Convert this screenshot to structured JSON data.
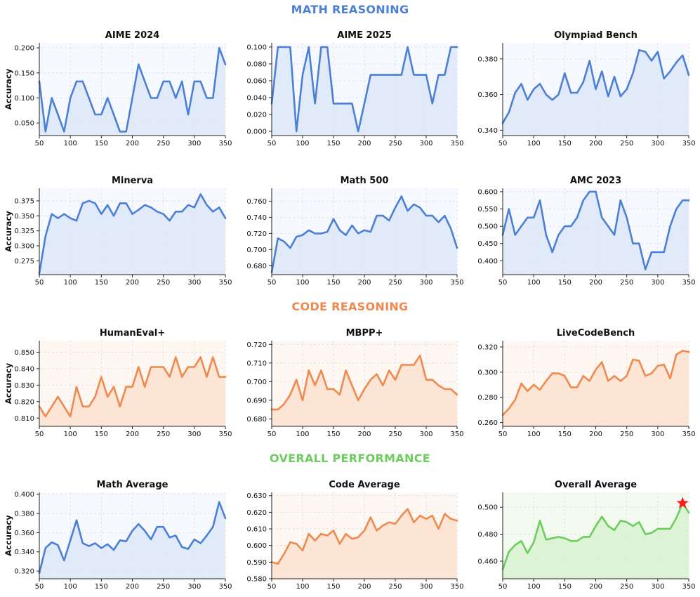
{
  "colors": {
    "math": "#4c7fd6",
    "code": "#ef8a4f",
    "overall": "#6dcc5e",
    "star": "#ff1a1a"
  },
  "sections": {
    "math": "MATH REASONING",
    "code": "CODE REASONING",
    "overall": "OVERALL PERFORMANCE"
  },
  "chart_data": [
    {
      "type": "line",
      "title": "AIME 2024",
      "ylabel": "Accuracy",
      "xlabel": "",
      "group": "math",
      "x": [
        50,
        60,
        70,
        80,
        90,
        100,
        110,
        120,
        130,
        140,
        150,
        160,
        170,
        180,
        190,
        200,
        210,
        220,
        230,
        240,
        250,
        260,
        270,
        280,
        290,
        300,
        310,
        320,
        330,
        340,
        350
      ],
      "y": [
        0.133,
        0.033,
        0.1,
        0.067,
        0.033,
        0.1,
        0.133,
        0.133,
        0.1,
        0.067,
        0.067,
        0.1,
        0.067,
        0.033,
        0.033,
        0.1,
        0.167,
        0.133,
        0.1,
        0.1,
        0.133,
        0.133,
        0.1,
        0.133,
        0.067,
        0.133,
        0.133,
        0.1,
        0.1,
        0.2,
        0.167
      ],
      "xlim": [
        50,
        350
      ],
      "ylim": [
        0.025,
        0.21
      ],
      "xticks": [
        50,
        100,
        150,
        200,
        250,
        300,
        350
      ],
      "yticks": [
        0.05,
        0.1,
        0.15,
        0.2
      ],
      "yticklabels": [
        "0.050",
        "0.100",
        "0.150",
        "0.200"
      ]
    },
    {
      "type": "line",
      "title": "AIME 2025",
      "ylabel": "",
      "xlabel": "",
      "group": "math",
      "x": [
        50,
        60,
        70,
        80,
        90,
        100,
        110,
        120,
        130,
        140,
        150,
        160,
        170,
        180,
        190,
        200,
        210,
        220,
        230,
        240,
        250,
        260,
        270,
        280,
        290,
        300,
        310,
        320,
        330,
        340,
        350
      ],
      "y": [
        0.033,
        0.1,
        0.1,
        0.1,
        0.0,
        0.067,
        0.1,
        0.033,
        0.1,
        0.1,
        0.033,
        0.033,
        0.033,
        0.033,
        0.0,
        0.033,
        0.067,
        0.067,
        0.067,
        0.067,
        0.067,
        0.067,
        0.1,
        0.067,
        0.067,
        0.067,
        0.033,
        0.067,
        0.067,
        0.1,
        0.1
      ],
      "xlim": [
        50,
        350
      ],
      "ylim": [
        -0.005,
        0.105
      ],
      "xticks": [
        50,
        100,
        150,
        200,
        250,
        300,
        350
      ],
      "yticks": [
        0,
        0.02,
        0.04,
        0.06,
        0.08,
        0.1
      ],
      "yticklabels": [
        "0.000",
        "0.020",
        "0.040",
        "0.060",
        "0.080",
        "0.100"
      ]
    },
    {
      "type": "line",
      "title": "Olympiad Bench",
      "ylabel": "",
      "xlabel": "",
      "group": "math",
      "x": [
        50,
        60,
        70,
        80,
        90,
        100,
        110,
        120,
        130,
        140,
        150,
        160,
        170,
        180,
        190,
        200,
        210,
        220,
        230,
        240,
        250,
        260,
        270,
        280,
        290,
        300,
        310,
        320,
        330,
        340,
        350
      ],
      "y": [
        0.344,
        0.35,
        0.361,
        0.366,
        0.357,
        0.363,
        0.366,
        0.36,
        0.357,
        0.36,
        0.372,
        0.361,
        0.361,
        0.367,
        0.379,
        0.363,
        0.373,
        0.359,
        0.37,
        0.359,
        0.363,
        0.372,
        0.385,
        0.384,
        0.379,
        0.384,
        0.369,
        0.373,
        0.378,
        0.382,
        0.371
      ],
      "xlim": [
        50,
        350
      ],
      "ylim": [
        0.337,
        0.389
      ],
      "xticks": [
        50,
        100,
        150,
        200,
        250,
        300,
        350
      ],
      "yticks": [
        0.34,
        0.36,
        0.38
      ],
      "yticklabels": [
        "0.340",
        "0.360",
        "0.380"
      ]
    },
    {
      "type": "line",
      "title": "Minerva",
      "ylabel": "Accuracy",
      "xlabel": "",
      "group": "math",
      "x": [
        50,
        60,
        70,
        80,
        90,
        100,
        110,
        120,
        130,
        140,
        150,
        160,
        170,
        180,
        190,
        200,
        210,
        220,
        230,
        240,
        250,
        260,
        270,
        280,
        290,
        300,
        310,
        320,
        330,
        340,
        350
      ],
      "y": [
        0.254,
        0.316,
        0.353,
        0.346,
        0.353,
        0.346,
        0.342,
        0.371,
        0.375,
        0.371,
        0.353,
        0.368,
        0.35,
        0.371,
        0.371,
        0.353,
        0.36,
        0.368,
        0.364,
        0.357,
        0.353,
        0.342,
        0.357,
        0.357,
        0.368,
        0.364,
        0.386,
        0.368,
        0.357,
        0.364,
        0.346
      ],
      "xlim": [
        50,
        350
      ],
      "ylim": [
        0.252,
        0.396
      ],
      "xticks": [
        50,
        100,
        150,
        200,
        250,
        300,
        350
      ],
      "yticks": [
        0.275,
        0.3,
        0.325,
        0.35,
        0.375
      ],
      "yticklabels": [
        "0.275",
        "0.300",
        "0.325",
        "0.350",
        "0.375"
      ]
    },
    {
      "type": "line",
      "title": "Math 500",
      "ylabel": "",
      "xlabel": "",
      "group": "math",
      "x": [
        50,
        60,
        70,
        80,
        90,
        100,
        110,
        120,
        130,
        140,
        150,
        160,
        170,
        180,
        190,
        200,
        210,
        220,
        230,
        240,
        250,
        260,
        270,
        280,
        290,
        300,
        310,
        320,
        330,
        340,
        350
      ],
      "y": [
        0.672,
        0.714,
        0.71,
        0.702,
        0.716,
        0.718,
        0.724,
        0.72,
        0.72,
        0.722,
        0.738,
        0.724,
        0.718,
        0.73,
        0.72,
        0.724,
        0.722,
        0.742,
        0.742,
        0.736,
        0.752,
        0.766,
        0.748,
        0.756,
        0.752,
        0.742,
        0.742,
        0.734,
        0.742,
        0.726,
        0.702
      ],
      "xlim": [
        50,
        350
      ],
      "ylim": [
        0.669,
        0.776
      ],
      "xticks": [
        50,
        100,
        150,
        200,
        250,
        300,
        350
      ],
      "yticks": [
        0.68,
        0.7,
        0.72,
        0.74,
        0.76
      ],
      "yticklabels": [
        "0.680",
        "0.700",
        "0.720",
        "0.740",
        "0.760"
      ]
    },
    {
      "type": "line",
      "title": "AMC 2023",
      "ylabel": "",
      "xlabel": "",
      "group": "math",
      "x": [
        50,
        60,
        70,
        80,
        90,
        100,
        110,
        120,
        130,
        140,
        150,
        160,
        170,
        180,
        190,
        200,
        210,
        220,
        230,
        240,
        250,
        260,
        270,
        280,
        290,
        300,
        310,
        320,
        330,
        340,
        350
      ],
      "y": [
        0.475,
        0.55,
        0.475,
        0.5,
        0.525,
        0.525,
        0.575,
        0.475,
        0.425,
        0.475,
        0.5,
        0.5,
        0.525,
        0.575,
        0.6,
        0.6,
        0.525,
        0.5,
        0.475,
        0.575,
        0.525,
        0.45,
        0.45,
        0.375,
        0.425,
        0.425,
        0.425,
        0.5,
        0.55,
        0.575,
        0.575
      ],
      "xlim": [
        50,
        350
      ],
      "ylim": [
        0.36,
        0.61
      ],
      "xticks": [
        50,
        100,
        150,
        200,
        250,
        300,
        350
      ],
      "yticks": [
        0.4,
        0.45,
        0.5,
        0.55,
        0.6
      ],
      "yticklabels": [
        "0.400",
        "0.450",
        "0.500",
        "0.550",
        "0.600"
      ]
    },
    {
      "type": "line",
      "title": "HumanEval+",
      "ylabel": "Accuracy",
      "xlabel": "",
      "group": "code",
      "x": [
        50,
        60,
        70,
        80,
        90,
        100,
        110,
        120,
        130,
        140,
        150,
        160,
        170,
        180,
        190,
        200,
        210,
        220,
        230,
        240,
        250,
        260,
        270,
        280,
        290,
        300,
        310,
        320,
        330,
        340,
        350
      ],
      "y": [
        0.817,
        0.811,
        0.817,
        0.823,
        0.817,
        0.811,
        0.829,
        0.817,
        0.817,
        0.823,
        0.835,
        0.823,
        0.829,
        0.817,
        0.829,
        0.829,
        0.841,
        0.829,
        0.841,
        0.841,
        0.841,
        0.835,
        0.847,
        0.835,
        0.841,
        0.841,
        0.847,
        0.835,
        0.847,
        0.835,
        0.835
      ],
      "xlim": [
        50,
        350
      ],
      "ylim": [
        0.805,
        0.857
      ],
      "xticks": [
        50,
        100,
        150,
        200,
        250,
        300,
        350
      ],
      "yticks": [
        0.81,
        0.82,
        0.83,
        0.84,
        0.85
      ],
      "yticklabels": [
        "0.810",
        "0.820",
        "0.830",
        "0.840",
        "0.850"
      ]
    },
    {
      "type": "line",
      "title": "MBPP+",
      "ylabel": "",
      "xlabel": "",
      "group": "code",
      "x": [
        50,
        60,
        70,
        80,
        90,
        100,
        110,
        120,
        130,
        140,
        150,
        160,
        170,
        180,
        190,
        200,
        210,
        220,
        230,
        240,
        250,
        260,
        270,
        280,
        290,
        300,
        310,
        320,
        330,
        340,
        350
      ],
      "y": [
        0.685,
        0.685,
        0.688,
        0.693,
        0.701,
        0.69,
        0.706,
        0.698,
        0.706,
        0.696,
        0.696,
        0.693,
        0.706,
        0.698,
        0.69,
        0.696,
        0.701,
        0.704,
        0.698,
        0.706,
        0.701,
        0.709,
        0.709,
        0.709,
        0.714,
        0.701,
        0.701,
        0.698,
        0.696,
        0.696,
        0.693
      ],
      "xlim": [
        50,
        350
      ],
      "ylim": [
        0.676,
        0.722
      ],
      "xticks": [
        50,
        100,
        150,
        200,
        250,
        300,
        350
      ],
      "yticks": [
        0.68,
        0.69,
        0.7,
        0.71,
        0.72
      ],
      "yticklabels": [
        "0.680",
        "0.690",
        "0.700",
        "0.710",
        "0.720"
      ]
    },
    {
      "type": "line",
      "title": "LiveCodeBench",
      "ylabel": "",
      "xlabel": "",
      "group": "code",
      "x": [
        50,
        60,
        70,
        80,
        90,
        100,
        110,
        120,
        130,
        140,
        150,
        160,
        170,
        180,
        190,
        200,
        210,
        220,
        230,
        240,
        250,
        260,
        270,
        280,
        290,
        300,
        310,
        320,
        330,
        340,
        350
      ],
      "y": [
        0.266,
        0.271,
        0.278,
        0.291,
        0.285,
        0.29,
        0.286,
        0.293,
        0.299,
        0.299,
        0.297,
        0.288,
        0.288,
        0.297,
        0.293,
        0.302,
        0.308,
        0.293,
        0.297,
        0.293,
        0.297,
        0.31,
        0.309,
        0.297,
        0.299,
        0.305,
        0.306,
        0.295,
        0.314,
        0.317,
        0.316
      ],
      "xlim": [
        50,
        350
      ],
      "ylim": [
        0.257,
        0.325
      ],
      "xticks": [
        50,
        100,
        150,
        200,
        250,
        300,
        350
      ],
      "yticks": [
        0.26,
        0.28,
        0.3,
        0.32
      ],
      "yticklabels": [
        "0.260",
        "0.280",
        "0.300",
        "0.320"
      ]
    },
    {
      "type": "line",
      "title": "Math Average",
      "ylabel": "Accuracy",
      "xlabel": "",
      "group": "math",
      "x": [
        50,
        60,
        70,
        80,
        90,
        100,
        110,
        120,
        130,
        140,
        150,
        160,
        170,
        180,
        190,
        200,
        210,
        220,
        230,
        240,
        250,
        260,
        270,
        280,
        290,
        300,
        310,
        320,
        330,
        340,
        350
      ],
      "y": [
        0.318,
        0.344,
        0.35,
        0.347,
        0.331,
        0.352,
        0.373,
        0.349,
        0.346,
        0.349,
        0.344,
        0.348,
        0.342,
        0.352,
        0.351,
        0.362,
        0.369,
        0.362,
        0.353,
        0.366,
        0.366,
        0.355,
        0.357,
        0.345,
        0.343,
        0.353,
        0.349,
        0.357,
        0.366,
        0.392,
        0.375
      ],
      "xlim": [
        50,
        350
      ],
      "ylim": [
        0.312,
        0.402
      ],
      "xticks": [
        50,
        100,
        150,
        200,
        250,
        300,
        350
      ],
      "yticks": [
        0.32,
        0.34,
        0.36,
        0.38,
        0.4
      ],
      "yticklabels": [
        "0.320",
        "0.340",
        "0.360",
        "0.380",
        "0.400"
      ]
    },
    {
      "type": "line",
      "title": "Code Average",
      "ylabel": "",
      "xlabel": "",
      "group": "code",
      "x": [
        50,
        60,
        70,
        80,
        90,
        100,
        110,
        120,
        130,
        140,
        150,
        160,
        170,
        180,
        190,
        200,
        210,
        220,
        230,
        240,
        250,
        260,
        270,
        280,
        290,
        300,
        310,
        320,
        330,
        340,
        350
      ],
      "y": [
        0.59,
        0.589,
        0.595,
        0.602,
        0.601,
        0.597,
        0.607,
        0.603,
        0.607,
        0.606,
        0.609,
        0.601,
        0.607,
        0.604,
        0.605,
        0.609,
        0.617,
        0.609,
        0.612,
        0.614,
        0.613,
        0.618,
        0.622,
        0.614,
        0.618,
        0.616,
        0.618,
        0.61,
        0.619,
        0.616,
        0.615
      ],
      "xlim": [
        50,
        350
      ],
      "ylim": [
        0.58,
        0.632
      ],
      "xticks": [
        50,
        100,
        150,
        200,
        250,
        300,
        350
      ],
      "yticks": [
        0.58,
        0.59,
        0.6,
        0.61,
        0.62,
        0.63
      ],
      "yticklabels": [
        "0.580",
        "0.590",
        "0.600",
        "0.610",
        "0.620",
        "0.630"
      ]
    },
    {
      "type": "line",
      "title": "Overall Average",
      "ylabel": "",
      "xlabel": "",
      "group": "overall",
      "x": [
        50,
        60,
        70,
        80,
        90,
        100,
        110,
        120,
        130,
        140,
        150,
        160,
        170,
        180,
        190,
        200,
        210,
        220,
        230,
        240,
        250,
        260,
        270,
        280,
        290,
        300,
        310,
        320,
        330,
        340,
        350
      ],
      "y": [
        0.454,
        0.467,
        0.472,
        0.475,
        0.466,
        0.474,
        0.49,
        0.476,
        0.477,
        0.478,
        0.477,
        0.475,
        0.475,
        0.478,
        0.478,
        0.486,
        0.493,
        0.486,
        0.483,
        0.49,
        0.489,
        0.486,
        0.489,
        0.48,
        0.481,
        0.484,
        0.484,
        0.484,
        0.492,
        0.503,
        0.496
      ],
      "xlim": [
        50,
        350
      ],
      "ylim": [
        0.447,
        0.511
      ],
      "xticks": [
        50,
        100,
        150,
        200,
        250,
        300,
        350
      ],
      "yticks": [
        0.46,
        0.48,
        0.5
      ],
      "yticklabels": [
        "0.460",
        "0.480",
        "0.500"
      ],
      "highlight": {
        "x": 340,
        "y": 0.503,
        "marker": "star"
      }
    }
  ]
}
